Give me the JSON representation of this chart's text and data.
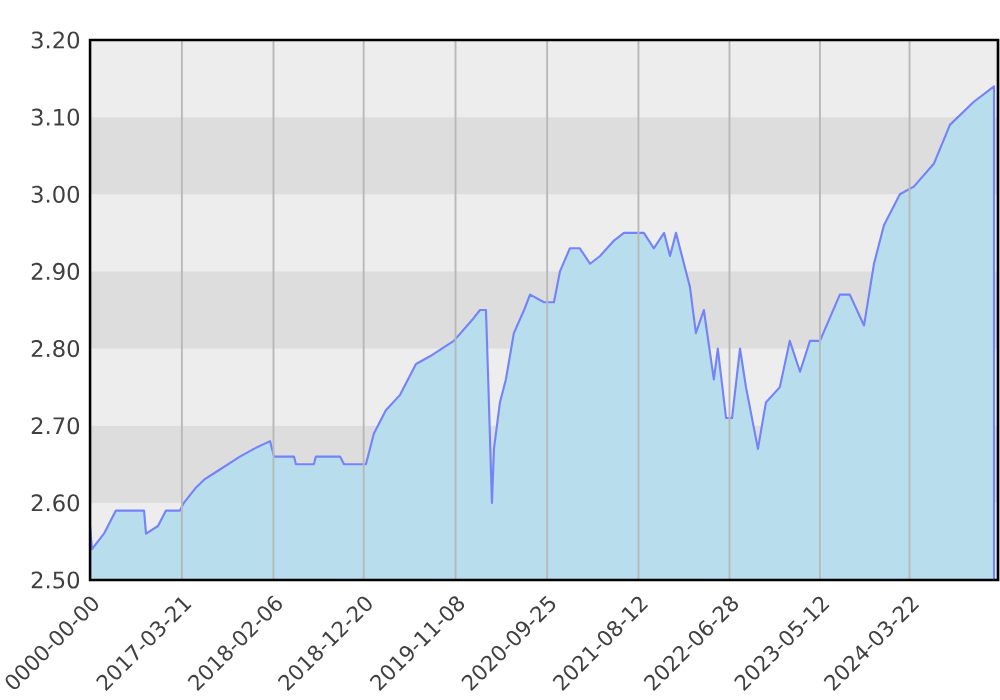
{
  "chart_data": {
    "type": "area",
    "color": "#b8dded",
    "x": [
      "2016-05-02",
      "2016-05-09",
      "2016-06-20",
      "2016-08-01",
      "2016-11-08",
      "2016-11-15",
      "2016-12-27",
      "2017-01-24",
      "2017-03-14",
      "2017-03-28",
      "2017-05-10",
      "2017-06-07",
      "2017-07-19",
      "2017-08-30",
      "2017-10-11",
      "2017-11-29",
      "2018-01-25",
      "2018-02-08",
      "2018-04-19",
      "2018-04-26",
      "2018-06-28",
      "2018-07-05",
      "2018-09-28",
      "2018-10-12",
      "2018-12-28",
      "2019-01-25",
      "2019-03-08",
      "2019-04-27",
      "2019-06-22",
      "2019-08-10",
      "2019-11-02",
      "2020-01-12",
      "2020-02-02",
      "2020-02-23",
      "2020-03-01",
      "2020-03-15",
      "2020-03-22",
      "2020-04-12",
      "2020-05-03",
      "2020-05-31",
      "2020-07-06",
      "2020-07-27",
      "2020-09-14",
      "2020-10-19",
      "2020-11-09",
      "2020-12-14",
      "2021-01-18",
      "2021-02-23",
      "2021-03-30",
      "2021-05-18",
      "2021-06-22",
      "2021-08-31",
      "2021-10-05",
      "2021-11-10",
      "2021-12-01",
      "2021-12-22",
      "2022-01-26",
      "2022-02-09",
      "2022-03-02",
      "2022-03-30",
      "2022-05-04",
      "2022-05-18",
      "2022-06-16",
      "2022-07-07",
      "2022-08-04",
      "2022-08-25",
      "2022-10-06",
      "2022-11-03",
      "2022-12-22",
      "2023-01-26",
      "2023-03-03",
      "2023-04-07",
      "2023-05-12",
      "2023-07-21",
      "2023-08-25",
      "2023-10-14",
      "2023-11-18",
      "2023-12-23",
      "2024-02-17",
      "2024-04-06",
      "2024-06-16",
      "2024-08-11",
      "2024-11-03",
      "2025-01-13"
    ],
    "values": [
      2.57,
      2.54,
      2.56,
      2.59,
      2.59,
      2.56,
      2.57,
      2.59,
      2.59,
      2.6,
      2.62,
      2.63,
      2.64,
      2.65,
      2.66,
      2.67,
      2.68,
      2.66,
      2.66,
      2.65,
      2.65,
      2.66,
      2.66,
      2.65,
      2.65,
      2.69,
      2.72,
      2.74,
      2.78,
      2.79,
      2.81,
      2.84,
      2.85,
      2.85,
      2.77,
      2.6,
      2.67,
      2.73,
      2.76,
      2.82,
      2.85,
      2.87,
      2.86,
      2.86,
      2.9,
      2.93,
      2.93,
      2.91,
      2.92,
      2.94,
      2.95,
      2.95,
      2.93,
      2.95,
      2.92,
      2.95,
      2.9,
      2.88,
      2.82,
      2.85,
      2.76,
      2.8,
      2.71,
      2.71,
      2.8,
      2.75,
      2.67,
      2.73,
      2.75,
      2.81,
      2.77,
      2.81,
      2.81,
      2.87,
      2.87,
      2.83,
      2.91,
      2.96,
      3.0,
      3.01,
      3.04,
      3.09,
      3.12,
      3.14
    ],
    "xlim": [
      "2016-05-02",
      "2025-01-27"
    ],
    "xticks": [
      {
        "value": "2016-05-02",
        "label": "0000-00-00"
      },
      "2017-03-21",
      "2018-02-06",
      "2018-12-20",
      "2019-11-08",
      "2020-09-25",
      "2021-08-12",
      "2022-06-28",
      "2023-05-12",
      "2024-03-22"
    ],
    "ylim": [
      2.5,
      3.2
    ],
    "yticks": [
      {
        "value": 2.5,
        "label": "2.50"
      },
      {
        "value": 2.6,
        "label": "2.60"
      },
      {
        "value": 2.7,
        "label": "2.70"
      },
      {
        "value": 2.8,
        "label": "2.80"
      },
      {
        "value": 2.9,
        "label": "2.90"
      },
      {
        "value": 3.0,
        "label": "3.00"
      },
      {
        "value": 3.1,
        "label": "3.10"
      },
      {
        "value": 3.2,
        "label": "3.20"
      }
    ],
    "grid": "x",
    "bands": [
      {
        "axis": "y",
        "from": 2.6,
        "to": 2.7,
        "color": "#dddddd"
      },
      {
        "axis": "y",
        "from": 2.8,
        "to": 2.9,
        "color": "#dddddd"
      },
      {
        "axis": "y",
        "from": 3.0,
        "to": 3.1,
        "color": "#dddddd"
      }
    ]
  }
}
